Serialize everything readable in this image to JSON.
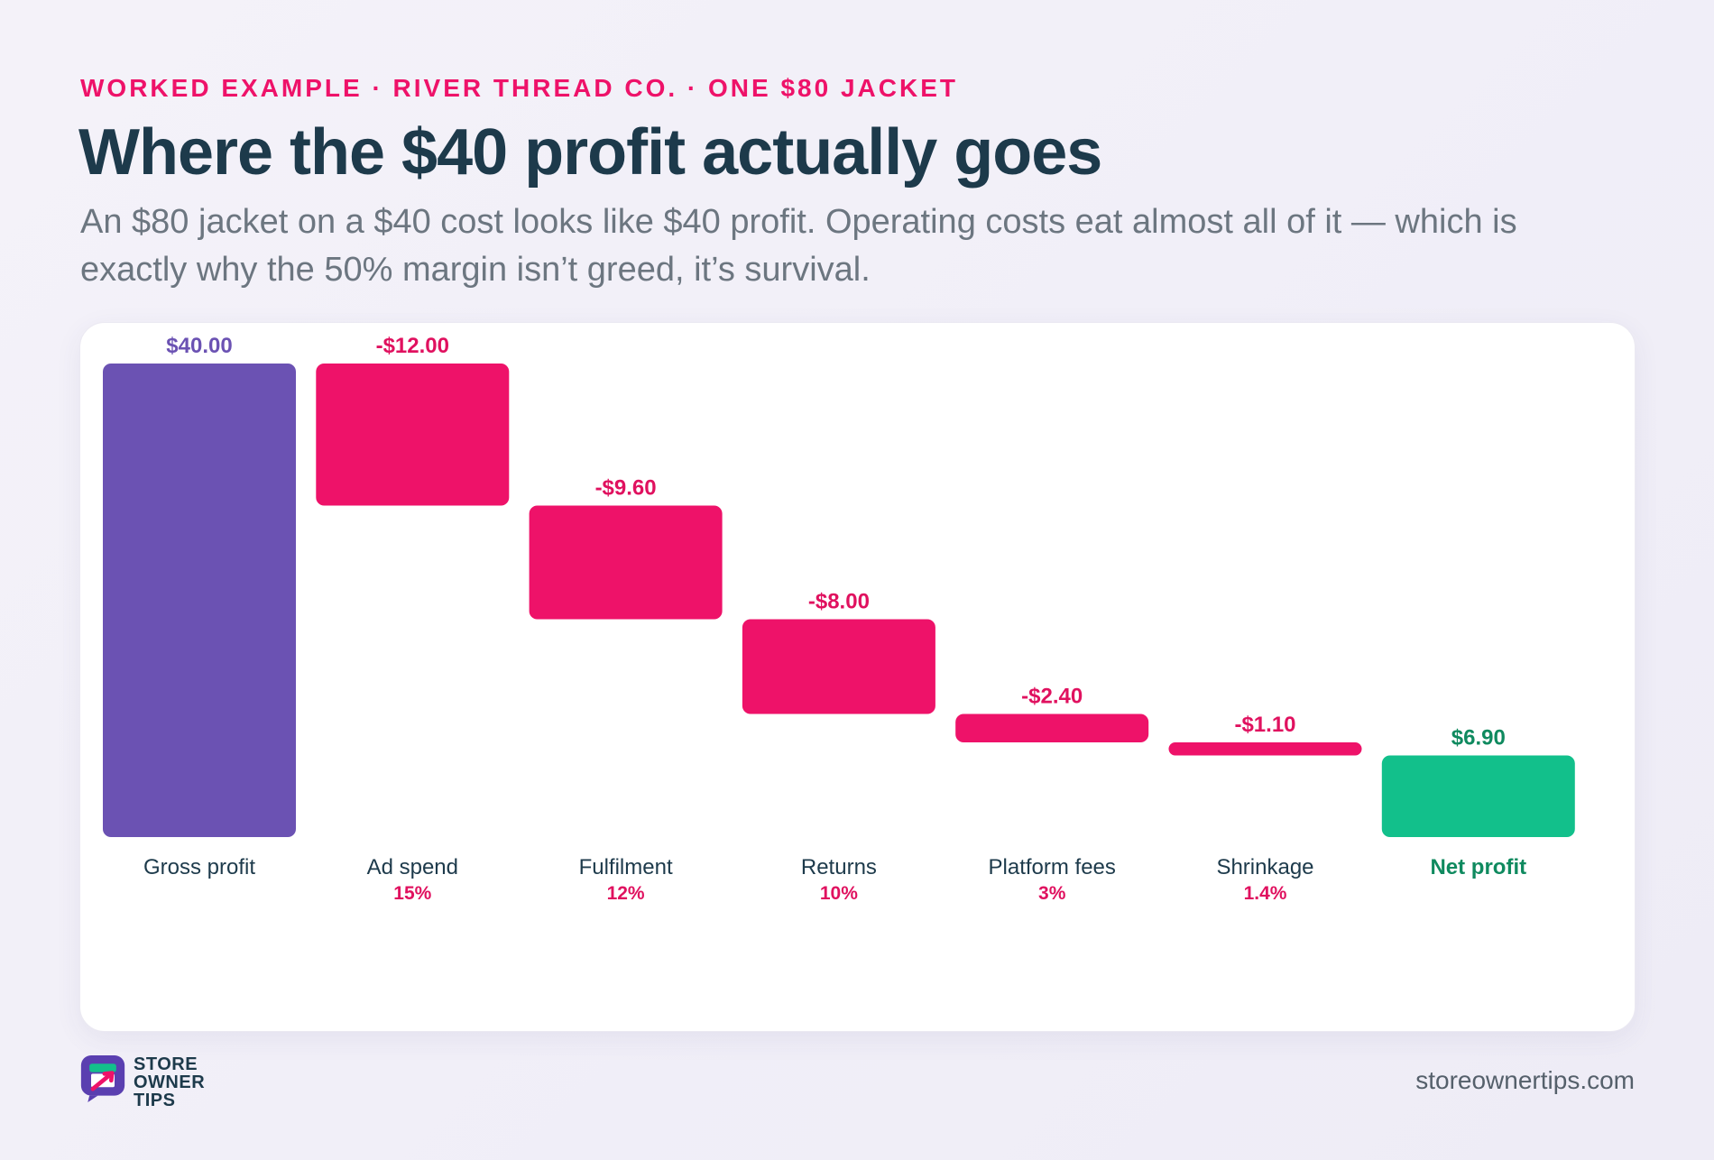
{
  "header": {
    "eyebrow": "WORKED EXAMPLE · RIVER THREAD CO. · ONE $80 JACKET",
    "title": "Where the $40 profit actually goes",
    "subtitle": "An $80 jacket on a $40 cost looks like $40 profit. Operating costs eat almost all of it — which is exactly why the 50% margin isn’t greed, it’s survival."
  },
  "chart_data": {
    "type": "bar",
    "subtype": "waterfall",
    "title": "",
    "xlabel": "",
    "ylabel": "",
    "ylim": [
      0,
      40
    ],
    "grid": false,
    "legend": "none",
    "steps": [
      {
        "category": "Gross profit",
        "value": 40.0,
        "kind": "total",
        "value_label": "$40.00",
        "percent_label": ""
      },
      {
        "category": "Ad spend",
        "value": -12.0,
        "kind": "decrease",
        "value_label": "-$12.00",
        "percent_label": "15%"
      },
      {
        "category": "Fulfilment",
        "value": -9.6,
        "kind": "decrease",
        "value_label": "-$9.60",
        "percent_label": "12%"
      },
      {
        "category": "Returns",
        "value": -8.0,
        "kind": "decrease",
        "value_label": "-$8.00",
        "percent_label": "10%"
      },
      {
        "category": "Platform fees",
        "value": -2.4,
        "kind": "decrease",
        "value_label": "-$2.40",
        "percent_label": "3%"
      },
      {
        "category": "Shrinkage",
        "value": -1.1,
        "kind": "decrease",
        "value_label": "-$1.10",
        "percent_label": "1.4%"
      },
      {
        "category": "Net profit",
        "value": 6.9,
        "kind": "result",
        "value_label": "$6.90",
        "percent_label": ""
      }
    ],
    "colors": {
      "total": "#6b52b3",
      "decrease": "#ee1269",
      "result": "#12c08b",
      "total_label": "#6b52b3",
      "decrease_label": "#e0115f",
      "result_label": "#0f8a5f",
      "category_label": "#1d3a4b"
    }
  },
  "footer": {
    "logo_lines": [
      "STORE",
      "OWNER",
      "TIPS"
    ],
    "logo_icon": "store-cart-icon",
    "url": "storeownertips.com"
  }
}
